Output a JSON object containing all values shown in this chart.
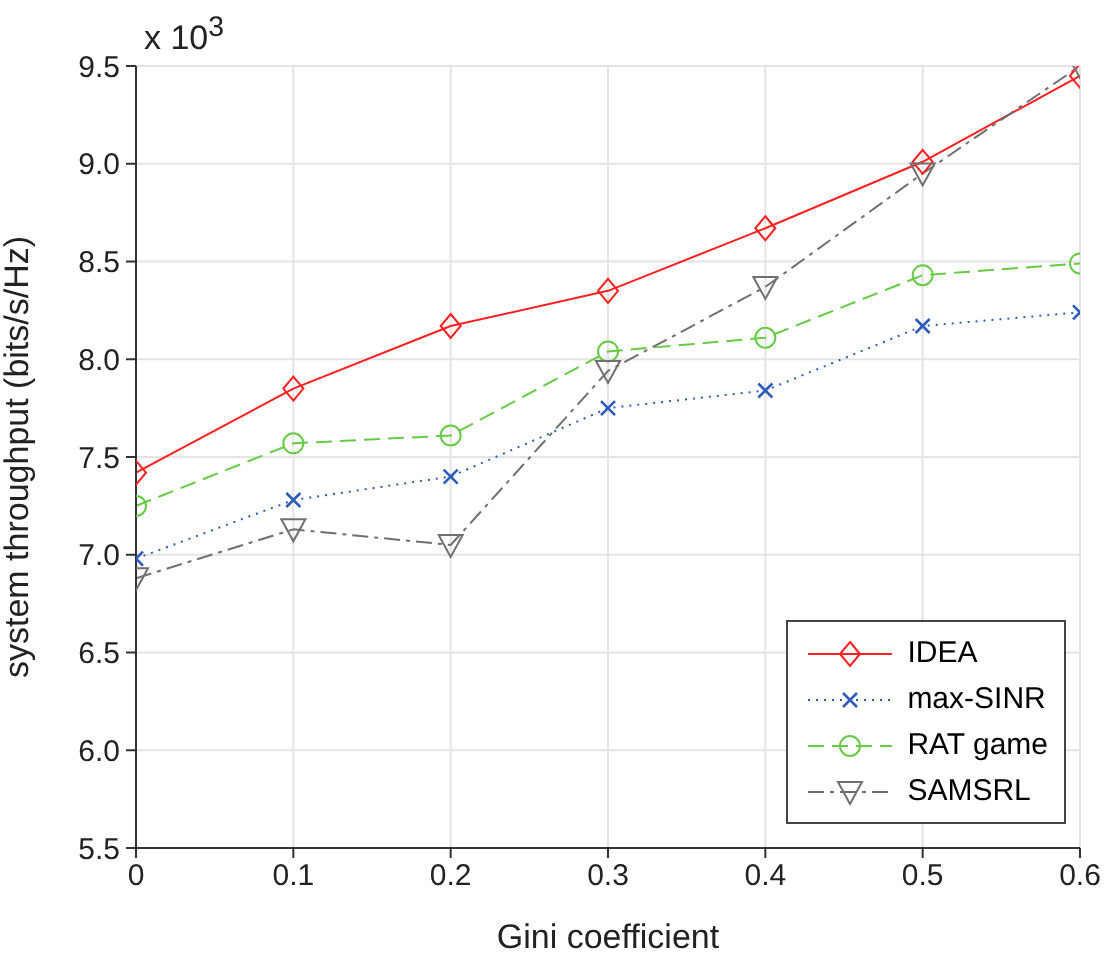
{
  "chart_data": {
    "type": "line",
    "xlabel": "Gini coefficient",
    "ylabel": "system throughput (bits/s/Hz)",
    "annotations": [
      "x 10$^{3}$"
    ],
    "x": [
      0,
      0.1,
      0.2,
      0.3,
      0.4,
      0.5,
      0.6
    ],
    "xlim": [
      0,
      0.6
    ],
    "xticks": [
      0,
      0.1,
      0.2,
      0.3,
      0.4,
      0.5,
      0.6
    ],
    "ylim": [
      5.5,
      9.5
    ],
    "yticks": [
      {
        "value": 5.5,
        "label": "5.5"
      },
      {
        "value": 6,
        "label": "6.0"
      },
      {
        "value": 6.5,
        "label": "6.5"
      },
      {
        "value": 7,
        "label": "7.0"
      },
      {
        "value": 7.5,
        "label": "7.5"
      },
      {
        "value": 8,
        "label": "8.0"
      },
      {
        "value": 8.5,
        "label": "8.5"
      },
      {
        "value": 9,
        "label": "9.0"
      },
      {
        "value": 9.5,
        "label": "9.5"
      }
    ],
    "grid": true,
    "legend": "bottom right",
    "series": [
      {
        "name": "IDEA",
        "color": "#ff2020",
        "marker": "diamond",
        "line_style": "solid",
        "values": [
          7.42,
          7.85,
          8.17,
          8.35,
          8.67,
          9.01,
          9.45
        ]
      },
      {
        "name": "max-SINR",
        "color": "#2e5cb8",
        "marker": "cross",
        "line_style": "dotted",
        "values": [
          6.98,
          7.28,
          7.4,
          7.75,
          7.84,
          8.17,
          8.24
        ]
      },
      {
        "name": "RAT game",
        "color": "#66cc44",
        "marker": "circle",
        "line_style": "dashed",
        "values": [
          7.25,
          7.57,
          7.61,
          8.04,
          8.11,
          8.43,
          8.49
        ]
      },
      {
        "name": "SAMSRL",
        "color": "#707070",
        "marker": "triangle",
        "line_style": "dashdot",
        "values": [
          6.88,
          7.13,
          7.05,
          7.94,
          8.37,
          8.95,
          9.5
        ]
      }
    ]
  }
}
